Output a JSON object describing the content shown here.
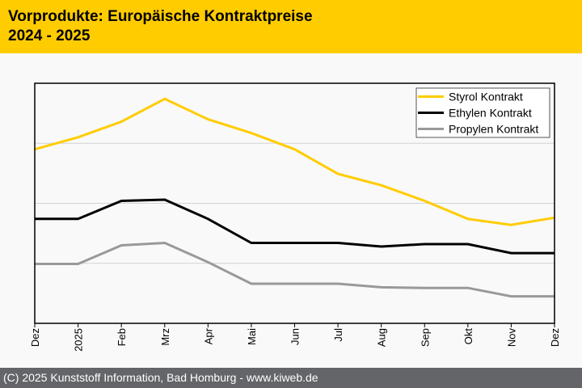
{
  "header": {
    "title_line1": "Vorprodukte: Europäische Kontraktpreise",
    "title_line2": "2024 - 2025"
  },
  "footer": {
    "text": "(C) 2025 Kunststoff Information, Bad Homburg - www.kiweb.de"
  },
  "colors": {
    "header_bg": "#FFCC00",
    "footer_bg": "#646569",
    "styrol": "#FFCC00",
    "ethylen": "#000000",
    "propylen": "#999999"
  },
  "chart_data": {
    "type": "line",
    "title": "Vorprodukte: Europäische Kontraktpreise 2024 - 2025",
    "xlabel": "",
    "ylabel": "",
    "y_units": "relative (no y-axis labels shown; values in gridline units)",
    "ylim": [
      0,
      4
    ],
    "y_gridlines": [
      1,
      2,
      3
    ],
    "y_tick_labels_visible": false,
    "grid": true,
    "legend_position": "top-right",
    "categories": [
      "Dez",
      "2025",
      "Feb",
      "Mrz",
      "Apr",
      "Mai",
      "Jun",
      "Jul",
      "Aug",
      "Sep",
      "Okt",
      "Nov",
      "Dez"
    ],
    "series": [
      {
        "name": "Styrol Kontrakt",
        "color": "#FFCC00",
        "values": [
          2.9,
          3.1,
          3.36,
          3.74,
          3.4,
          3.17,
          2.9,
          2.49,
          2.3,
          2.04,
          1.74,
          1.64,
          1.76
        ]
      },
      {
        "name": "Ethylen Kontrakt",
        "color": "#000000",
        "values": [
          1.74,
          1.74,
          2.04,
          2.06,
          1.74,
          1.34,
          1.34,
          1.34,
          1.28,
          1.32,
          1.32,
          1.17,
          1.17
        ]
      },
      {
        "name": "Propylen Kontrakt",
        "color": "#999999",
        "values": [
          0.99,
          0.99,
          1.3,
          1.34,
          1.02,
          0.66,
          0.66,
          0.66,
          0.6,
          0.59,
          0.59,
          0.45,
          0.45
        ]
      }
    ]
  }
}
